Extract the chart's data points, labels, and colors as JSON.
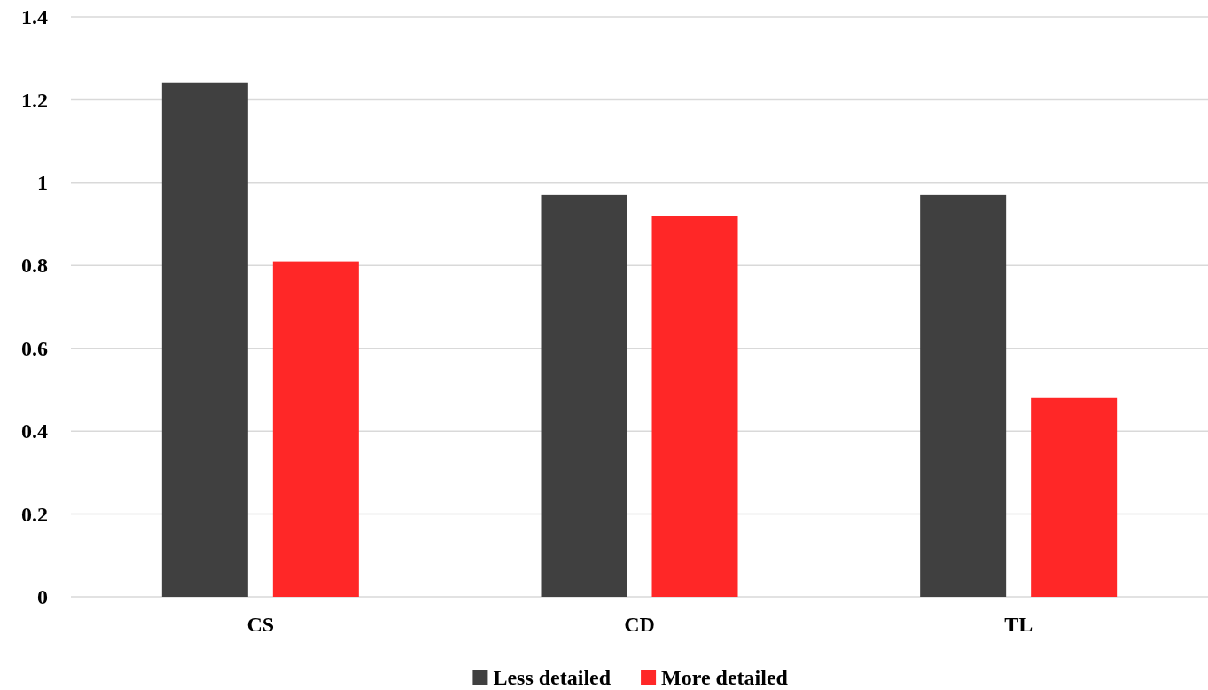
{
  "chart_data": {
    "type": "bar",
    "categories": [
      "CS",
      "CD",
      "TL"
    ],
    "series": [
      {
        "name": "Less detailed",
        "color": "#404040",
        "values": [
          1.24,
          0.97,
          0.97
        ]
      },
      {
        "name": "More detailed",
        "color": "#ff2727",
        "values": [
          0.81,
          0.92,
          0.48
        ]
      }
    ],
    "ylim": [
      0,
      1.4
    ],
    "yticks": [
      0,
      0.2,
      0.4,
      0.6,
      0.8,
      1,
      1.2,
      1.4
    ],
    "grid": "y",
    "legend": "bottom"
  }
}
